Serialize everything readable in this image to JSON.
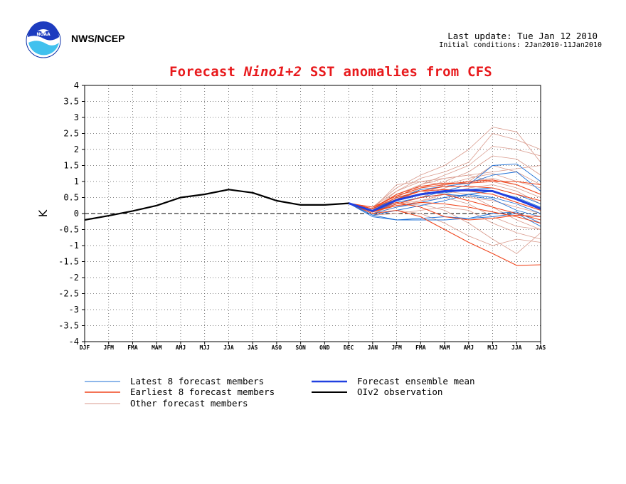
{
  "header": {
    "agency": "NWS/NCEP",
    "last_update": "Last update: Tue Jan 12 2010",
    "initial_conditions": "Initial conditions: 2Jan2010-11Jan2010",
    "title_prefix": "Forecast ",
    "title_region": "Nino1+2",
    "title_suffix": " SST anomalies from CFS"
  },
  "colors": {
    "latest": "#1e6fd6",
    "earliest": "#f0461e",
    "other": "#d99a8c",
    "mean": "#2040e0",
    "observation": "#000000",
    "title": "#e8191c"
  },
  "chart_data": {
    "type": "line",
    "ylabel": "K",
    "ylim": [
      -4,
      4
    ],
    "y_ticks": [
      4,
      3.5,
      3,
      2.5,
      2,
      1.5,
      1,
      0.5,
      0,
      -0.5,
      -1,
      -1.5,
      -2,
      -2.5,
      -3,
      -3.5,
      -4
    ],
    "y_tick_labels": [
      "4",
      "3.5",
      "3",
      "2.5",
      "2",
      "1.5",
      "1",
      "0.5",
      "0",
      "-0.5",
      "-1",
      "-1.5",
      "-2",
      "-2.5",
      "-3",
      "-3.5",
      "-4"
    ],
    "categories": [
      "DJF",
      "JFM",
      "FMA",
      "MAM",
      "AMJ",
      "MJJ",
      "JJA",
      "JAS",
      "ASO",
      "SON",
      "OND",
      "DEC",
      "JAN",
      "JFM",
      "FMA",
      "MAM",
      "AMJ",
      "MJJ",
      "JJA",
      "JAS"
    ],
    "grid": true,
    "legend_position": "bottom",
    "legend": [
      {
        "label": "Latest 8 forecast members",
        "key": "latest"
      },
      {
        "label": "Earliest 8 forecast members",
        "key": "earliest"
      },
      {
        "label": "Other forecast members",
        "key": "other"
      },
      {
        "label": "Forecast ensemble mean",
        "key": "mean"
      },
      {
        "label": "OIv2 observation",
        "key": "observation"
      }
    ],
    "observation": {
      "name": "OIv2 observation",
      "values": [
        -0.2,
        -0.07,
        0.08,
        0.25,
        0.5,
        0.6,
        0.75,
        0.65,
        0.4,
        0.27,
        0.27,
        0.32
      ]
    },
    "ensemble_mean": {
      "name": "Forecast ensemble mean",
      "values": [
        0.32,
        0.08,
        0.42,
        0.6,
        0.7,
        0.73,
        0.7,
        0.45,
        0.15
      ]
    },
    "latest_members": [
      [
        0.32,
        -0.1,
        -0.2,
        -0.2,
        -0.2,
        -0.15,
        0.0,
        0.05,
        -0.3
      ],
      [
        0.32,
        0.05,
        0.3,
        0.5,
        0.7,
        0.9,
        1.5,
        1.55,
        1.0
      ],
      [
        0.32,
        0.15,
        0.45,
        0.75,
        0.85,
        0.95,
        1.2,
        1.3,
        0.7
      ],
      [
        0.32,
        -0.05,
        0.1,
        0.25,
        0.4,
        0.6,
        0.7,
        0.5,
        0.2
      ],
      [
        0.32,
        0.0,
        0.2,
        0.35,
        0.5,
        0.6,
        0.5,
        0.3,
        0.0
      ],
      [
        0.32,
        -0.05,
        -0.2,
        -0.15,
        -0.1,
        -0.15,
        -0.1,
        0.0,
        -0.4
      ],
      [
        0.32,
        0.1,
        0.4,
        0.6,
        0.65,
        0.75,
        0.8,
        0.6,
        0.3
      ],
      [
        0.32,
        0.05,
        0.35,
        0.5,
        0.6,
        0.55,
        0.45,
        0.1,
        -0.1
      ]
    ],
    "earliest_members": [
      [
        0.32,
        0.15,
        0.6,
        0.85,
        0.95,
        0.95,
        1.0,
        1.0,
        0.9
      ],
      [
        0.32,
        0.1,
        0.45,
        0.7,
        0.85,
        0.85,
        0.8,
        0.6,
        0.4
      ],
      [
        0.32,
        0.2,
        0.55,
        0.8,
        0.9,
        1.0,
        1.05,
        0.9,
        0.6
      ],
      [
        0.32,
        0.05,
        0.3,
        0.5,
        0.6,
        0.4,
        0.2,
        0.0,
        -0.2
      ],
      [
        0.32,
        0.0,
        0.1,
        -0.1,
        -0.5,
        -0.9,
        -1.25,
        -1.62,
        -1.6
      ],
      [
        0.32,
        0.1,
        0.35,
        0.2,
        -0.1,
        -0.2,
        -0.15,
        -0.05,
        -0.1
      ],
      [
        0.32,
        0.15,
        0.5,
        0.7,
        0.75,
        0.7,
        0.6,
        0.35,
        0.1
      ],
      [
        0.32,
        0.05,
        0.25,
        0.35,
        0.3,
        0.2,
        0.05,
        -0.1,
        -0.3
      ]
    ],
    "other_members": [
      [
        0.32,
        0.2,
        0.8,
        1.2,
        1.5,
        2.0,
        2.7,
        2.55,
        1.6
      ],
      [
        0.32,
        0.1,
        0.7,
        1.1,
        1.3,
        1.6,
        2.5,
        2.3,
        2.0
      ],
      [
        0.32,
        0.15,
        0.6,
        0.9,
        1.2,
        1.5,
        2.1,
        2.0,
        1.8
      ],
      [
        0.32,
        0.05,
        0.4,
        0.8,
        1.0,
        1.3,
        1.8,
        1.7,
        1.2
      ],
      [
        0.32,
        0.1,
        0.5,
        0.9,
        1.1,
        1.2,
        1.3,
        1.4,
        1.5
      ],
      [
        0.32,
        0.0,
        0.3,
        0.5,
        0.8,
        1.0,
        1.1,
        0.9,
        0.6
      ],
      [
        0.32,
        0.0,
        0.2,
        0.3,
        0.1,
        -0.3,
        -0.8,
        -1.25,
        -0.6
      ],
      [
        0.32,
        -0.05,
        0.1,
        0.0,
        -0.3,
        -0.7,
        -1.0,
        -0.8,
        -0.9
      ],
      [
        0.32,
        0.05,
        0.3,
        0.4,
        0.5,
        0.3,
        -0.1,
        -0.4,
        -0.5
      ],
      [
        0.32,
        0.1,
        0.6,
        0.7,
        0.6,
        0.5,
        0.4,
        0.2,
        0.0
      ],
      [
        0.32,
        0.15,
        0.9,
        1.0,
        0.9,
        1.1,
        1.25,
        1.0,
        0.8
      ],
      [
        0.32,
        0.0,
        0.2,
        0.4,
        0.6,
        0.8,
        0.9,
        0.7,
        0.3
      ],
      [
        0.32,
        0.1,
        0.5,
        0.6,
        0.7,
        0.6,
        0.2,
        -0.2,
        -0.5
      ],
      [
        0.32,
        -0.05,
        0.0,
        0.1,
        0.2,
        0.1,
        -0.3,
        -0.6,
        -0.8
      ],
      [
        0.32,
        0.2,
        0.7,
        1.0,
        1.1,
        1.2,
        1.0,
        0.8,
        0.5
      ],
      [
        0.32,
        0.05,
        0.4,
        0.6,
        0.9,
        1.0,
        1.5,
        1.3,
        0.9
      ]
    ]
  }
}
